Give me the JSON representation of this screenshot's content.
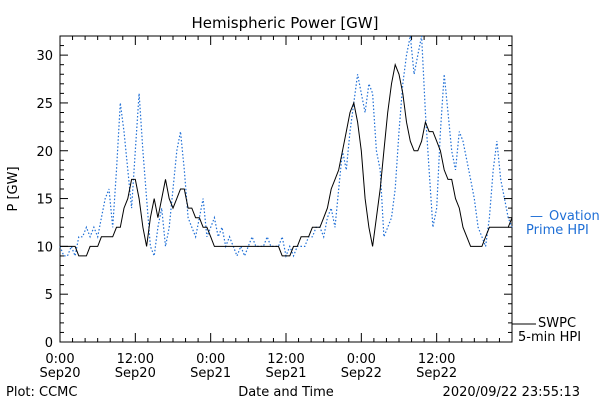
{
  "chart_data": {
    "type": "line",
    "title": "Hemispheric Power [GW]",
    "ylabel": "P [GW]",
    "xlabel": "Date and Time",
    "ylim": [
      0,
      32
    ],
    "xlim_hours": [
      0,
      72
    ],
    "yticks": [
      0,
      5,
      10,
      15,
      20,
      25,
      30
    ],
    "xticks": [
      {
        "hour": 0,
        "line1": "0:00",
        "line2": "Sep20"
      },
      {
        "hour": 12,
        "line1": "12:00",
        "line2": "Sep20"
      },
      {
        "hour": 24,
        "line1": "0:00",
        "line2": "Sep21"
      },
      {
        "hour": 36,
        "line1": "12:00",
        "line2": "Sep21"
      },
      {
        "hour": 48,
        "line1": "0:00",
        "line2": "Sep22"
      },
      {
        "hour": 60,
        "line1": "12:00",
        "line2": "Sep22"
      }
    ],
    "grid": false,
    "series": [
      {
        "name": "Ovation Prime HPI",
        "legend_line1": "Ovation",
        "legend_line2": "Prime HPI",
        "color": "#1f6fd6",
        "style": "dotted",
        "x": [
          0.0,
          0.6,
          1.2,
          1.8,
          2.4,
          3.0,
          3.6,
          4.2,
          4.8,
          5.4,
          6.0,
          6.6,
          7.2,
          7.8,
          8.4,
          9.0,
          9.6,
          10.2,
          10.8,
          11.4,
          12.0,
          12.6,
          13.2,
          13.8,
          14.4,
          15.0,
          15.6,
          16.2,
          16.8,
          17.4,
          18.0,
          18.6,
          19.2,
          19.8,
          20.4,
          21.0,
          21.6,
          22.2,
          22.8,
          23.4,
          24.0,
          24.6,
          25.2,
          25.8,
          26.4,
          27.0,
          27.6,
          28.2,
          28.8,
          29.4,
          30.0,
          30.6,
          31.2,
          31.8,
          32.4,
          33.0,
          33.6,
          34.2,
          34.8,
          35.4,
          36.0,
          36.6,
          37.2,
          37.8,
          38.4,
          39.0,
          39.6,
          40.2,
          40.8,
          41.4,
          42.0,
          42.6,
          43.2,
          43.8,
          44.4,
          45.0,
          45.6,
          46.2,
          46.8,
          47.4,
          48.0,
          48.6,
          49.2,
          49.8,
          50.4,
          51.0,
          51.6,
          52.2,
          52.8,
          53.4,
          54.0,
          54.6,
          55.2,
          55.8,
          56.4,
          57.0,
          57.6,
          58.2,
          58.8,
          59.4,
          60.0,
          60.6,
          61.2,
          61.8,
          62.4,
          63.0,
          63.6,
          64.2,
          64.8,
          65.4,
          66.0,
          66.6,
          67.2,
          67.8,
          68.4,
          69.0,
          69.6,
          70.2,
          70.8,
          71.4,
          72.0
        ],
        "y": [
          10,
          9,
          9,
          10,
          9,
          11,
          11,
          12,
          11,
          12,
          11,
          13,
          15,
          16,
          12,
          18,
          25,
          22,
          18,
          14,
          20,
          26,
          20,
          15,
          10,
          9,
          12,
          14,
          10,
          12,
          16,
          20,
          22,
          18,
          13,
          12,
          11,
          13,
          15,
          11,
          12,
          13,
          11,
          12,
          10,
          11,
          10,
          9,
          10,
          9,
          10,
          11,
          10,
          10,
          10,
          11,
          10,
          10,
          10,
          11,
          9,
          10,
          9,
          10,
          10,
          10,
          11,
          11,
          12,
          12,
          11,
          13,
          14,
          12,
          16,
          20,
          18,
          22,
          25,
          28,
          26,
          24,
          27,
          26,
          20,
          18,
          11,
          12,
          13,
          16,
          22,
          27,
          30,
          32,
          28,
          30,
          32,
          24,
          18,
          12,
          14,
          22,
          28,
          24,
          20,
          18,
          22,
          21,
          19,
          17,
          15,
          12,
          11,
          10,
          13,
          18,
          21,
          17,
          15,
          13,
          12
        ]
      },
      {
        "name": "SWPC 5-min HPI",
        "legend_line1": "SWPC",
        "legend_line2": "5-min HPI",
        "color": "#000000",
        "style": "solid",
        "x": [
          0.0,
          0.6,
          1.2,
          1.8,
          2.4,
          3.0,
          3.6,
          4.2,
          4.8,
          5.4,
          6.0,
          6.6,
          7.2,
          7.8,
          8.4,
          9.0,
          9.6,
          10.2,
          10.8,
          11.4,
          12.0,
          12.6,
          13.2,
          13.8,
          14.4,
          15.0,
          15.6,
          16.2,
          16.8,
          17.4,
          18.0,
          18.6,
          19.2,
          19.8,
          20.4,
          21.0,
          21.6,
          22.2,
          22.8,
          23.4,
          24.0,
          24.6,
          25.2,
          25.8,
          26.4,
          27.0,
          27.6,
          28.2,
          28.8,
          29.4,
          30.0,
          30.6,
          31.2,
          31.8,
          32.4,
          33.0,
          33.6,
          34.2,
          34.8,
          35.4,
          36.0,
          36.6,
          37.2,
          37.8,
          38.4,
          39.0,
          39.6,
          40.2,
          40.8,
          41.4,
          42.0,
          42.6,
          43.2,
          43.8,
          44.4,
          45.0,
          45.6,
          46.2,
          46.8,
          47.4,
          48.0,
          48.6,
          49.2,
          49.8,
          50.4,
          51.0,
          51.6,
          52.2,
          52.8,
          53.4,
          54.0,
          54.6,
          55.2,
          55.8,
          56.4,
          57.0,
          57.6,
          58.2,
          58.8,
          59.4,
          60.0,
          60.6,
          61.2,
          61.8,
          62.4,
          63.0,
          63.6,
          64.2,
          64.8,
          65.4,
          66.0,
          66.6,
          67.2,
          67.8,
          68.4,
          69.0,
          69.6,
          70.2,
          70.8,
          71.4,
          72.0
        ],
        "y": [
          10,
          10,
          10,
          10,
          10,
          9,
          9,
          9,
          10,
          10,
          10,
          11,
          11,
          11,
          11,
          12,
          12,
          14,
          15,
          17,
          17,
          15,
          12,
          10,
          13,
          15,
          13,
          15,
          17,
          15,
          14,
          15,
          16,
          16,
          14,
          14,
          13,
          13,
          12,
          12,
          11,
          10,
          10,
          10,
          10,
          10,
          10,
          10,
          10,
          10,
          10,
          10,
          10,
          10,
          10,
          10,
          10,
          10,
          10,
          9,
          9,
          9,
          10,
          10,
          11,
          11,
          11,
          12,
          12,
          12,
          13,
          14,
          16,
          17,
          18,
          20,
          22,
          24,
          25,
          23,
          20,
          15,
          12,
          10,
          13,
          16,
          20,
          24,
          27,
          29,
          28,
          26,
          23,
          21,
          20,
          20,
          21,
          23,
          22,
          22,
          21,
          20,
          18,
          17,
          17,
          15,
          14,
          12,
          11,
          10,
          10,
          10,
          10,
          11,
          12,
          12,
          12,
          12,
          12,
          12,
          13
        ]
      }
    ]
  },
  "footer": {
    "left": "Plot: CCMC",
    "center": "Date and Time",
    "right": "2020/09/22 23:55:13"
  }
}
